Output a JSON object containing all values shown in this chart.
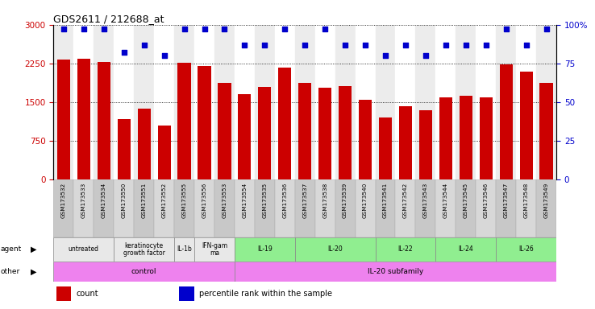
{
  "title": "GDS2611 / 212688_at",
  "samples": [
    "GSM173532",
    "GSM173533",
    "GSM173534",
    "GSM173550",
    "GSM173551",
    "GSM173552",
    "GSM173555",
    "GSM173556",
    "GSM173553",
    "GSM173554",
    "GSM173535",
    "GSM173536",
    "GSM173537",
    "GSM173538",
    "GSM173539",
    "GSM173540",
    "GSM173541",
    "GSM173542",
    "GSM173543",
    "GSM173544",
    "GSM173545",
    "GSM173546",
    "GSM173547",
    "GSM173548",
    "GSM173549"
  ],
  "counts": [
    2320,
    2340,
    2280,
    1180,
    1380,
    1050,
    2260,
    2200,
    1870,
    1650,
    1800,
    2170,
    1870,
    1780,
    1810,
    1540,
    1200,
    1430,
    1340,
    1600,
    1620,
    1600,
    2230,
    2100,
    1870
  ],
  "percentiles": [
    97,
    97,
    97,
    82,
    87,
    80,
    97,
    97,
    97,
    87,
    87,
    97,
    87,
    97,
    87,
    87,
    80,
    87,
    80,
    87,
    87,
    87,
    97,
    87,
    97
  ],
  "bar_color": "#cc0000",
  "dot_color": "#0000cc",
  "ylim_left": [
    0,
    3000
  ],
  "yticks_left": [
    0,
    750,
    1500,
    2250,
    3000
  ],
  "yticks_right": [
    0,
    25,
    50,
    75,
    100
  ],
  "agent_groups": [
    {
      "label": "untreated",
      "start": 0,
      "end": 3,
      "color": "#e8e8e8"
    },
    {
      "label": "keratinocyte\ngrowth factor",
      "start": 3,
      "end": 6,
      "color": "#e8e8e8"
    },
    {
      "label": "IL-1b",
      "start": 6,
      "end": 7,
      "color": "#e8e8e8"
    },
    {
      "label": "IFN-gam\nma",
      "start": 7,
      "end": 9,
      "color": "#e8e8e8"
    },
    {
      "label": "IL-19",
      "start": 9,
      "end": 12,
      "color": "#90ee90"
    },
    {
      "label": "IL-20",
      "start": 12,
      "end": 16,
      "color": "#90ee90"
    },
    {
      "label": "IL-22",
      "start": 16,
      "end": 19,
      "color": "#90ee90"
    },
    {
      "label": "IL-24",
      "start": 19,
      "end": 22,
      "color": "#90ee90"
    },
    {
      "label": "IL-26",
      "start": 22,
      "end": 25,
      "color": "#90ee90"
    }
  ],
  "other_groups": [
    {
      "label": "control",
      "start": 0,
      "end": 9,
      "color": "#ee82ee"
    },
    {
      "label": "IL-20 subfamily",
      "start": 9,
      "end": 25,
      "color": "#ee82ee"
    }
  ],
  "legend_items": [
    {
      "color": "#cc0000",
      "label": "count"
    },
    {
      "color": "#0000cc",
      "label": "percentile rank within the sample"
    }
  ]
}
